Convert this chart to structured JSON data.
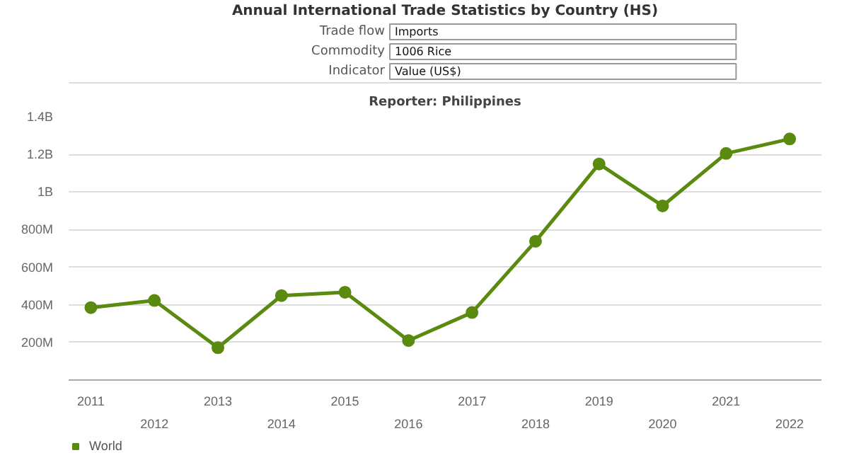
{
  "chart_data": {
    "type": "line",
    "title": "Reporter: Philippines",
    "annotations": [
      "Annual International Trade Statistics by Country (HS)",
      "Trade flow",
      "Imports",
      "Commodity",
      "1006 Rice",
      "Indicator",
      "Value (US$)"
    ],
    "categories": [
      "2011",
      "2012",
      "2013",
      "2014",
      "2015",
      "2016",
      "2017",
      "2018",
      "2019",
      "2020",
      "2021",
      "2022"
    ],
    "series": [
      {
        "name": "World",
        "color": "#5a8a0f",
        "values": [
          385000000,
          423000000,
          172000000,
          449000000,
          467000000,
          210000000,
          359000000,
          738000000,
          1149000000,
          926000000,
          1205000000,
          1282000000
        ]
      }
    ],
    "ylim": [
      0,
      1400000000
    ],
    "yticks": [
      {
        "value": 200000000,
        "label": "200M"
      },
      {
        "value": 400000000,
        "label": "400M"
      },
      {
        "value": 600000000,
        "label": "600M"
      },
      {
        "value": 800000000,
        "label": "800M"
      },
      {
        "value": 1000000000,
        "label": "1B"
      },
      {
        "value": 1200000000,
        "label": "1.2B"
      },
      {
        "value": 1400000000,
        "label": "1.4B"
      }
    ],
    "grid": "y",
    "legend": "bottom left",
    "marker": "circle",
    "line_style": "solid"
  }
}
